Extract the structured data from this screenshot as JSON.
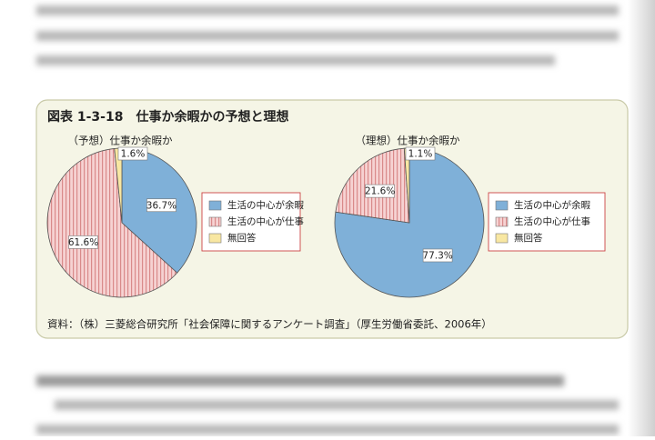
{
  "figure": {
    "title": "図表 1-3-18　仕事か余暇かの予想と理想",
    "source": "資料：（株）三菱総合研究所「社会保障に関するアンケート調査」（厚生労働省委託、2006年）"
  },
  "chart_data": [
    {
      "type": "pie",
      "title": "（予想）仕事か余暇か",
      "categories": [
        "生活の中心が余暇",
        "生活の中心が仕事",
        "無回答"
      ],
      "values": [
        36.7,
        61.6,
        1.6
      ],
      "value_labels": [
        "36.7%",
        "61.6%",
        "1.6%"
      ],
      "colors": [
        "#7fb0d8",
        "#f6d2d2",
        "#f8e7a2"
      ],
      "hatch": [
        false,
        true,
        false
      ]
    },
    {
      "type": "pie",
      "title": "（理想）仕事か余暇か",
      "categories": [
        "生活の中心が余暇",
        "生活の中心が仕事",
        "無回答"
      ],
      "values": [
        77.3,
        21.6,
        1.1
      ],
      "value_labels": [
        "77.3%",
        "21.6%",
        "1.1%"
      ],
      "colors": [
        "#7fb0d8",
        "#f6d2d2",
        "#f8e7a2"
      ],
      "hatch": [
        false,
        true,
        false
      ]
    }
  ]
}
